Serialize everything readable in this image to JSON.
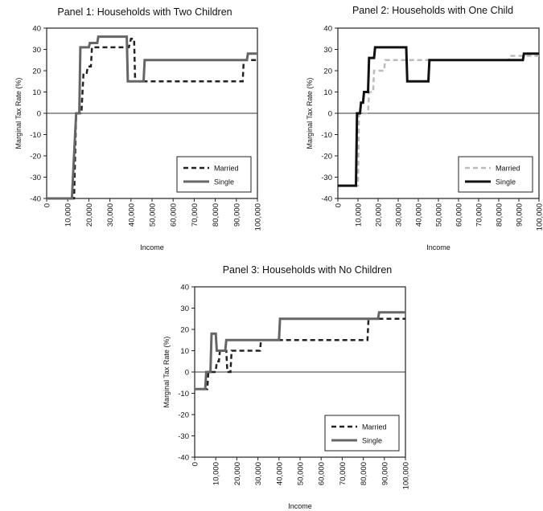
{
  "chart_data": [
    {
      "type": "line",
      "title": "Panel 1: Households with Two Children",
      "xlabel": "Income",
      "ylabel": "Marginal Tax Rate (%)",
      "xlim": [
        0,
        100000
      ],
      "ylim": [
        -40,
        40
      ],
      "x_ticks": [
        "0",
        "10,000",
        "20,000",
        "30,000",
        "40,000",
        "50,000",
        "60,000",
        "70,000",
        "80,000",
        "90,000",
        "100,000"
      ],
      "y_ticks": [
        "40",
        "30",
        "20",
        "10",
        "0",
        "-10",
        "-20",
        "-30",
        "-40"
      ],
      "grid": false,
      "legend": "bottom-right",
      "series": [
        {
          "name": "Married",
          "style": "dashed",
          "color": "#222222",
          "x": [
            0,
            13000,
            14000,
            16500,
            17500,
            19000,
            19500,
            21000,
            21500,
            23500,
            24000,
            39000,
            40000,
            41500,
            42000,
            93000,
            93500,
            100000
          ],
          "y": [
            -40,
            -40,
            0,
            0,
            19,
            19,
            22,
            22,
            31,
            31,
            31,
            31,
            35,
            35,
            15,
            15,
            25,
            25
          ]
        },
        {
          "name": "Single",
          "style": "solid",
          "color": "#666666",
          "x": [
            0,
            12000,
            14000,
            15500,
            16000,
            20000,
            20500,
            24000,
            24500,
            35000,
            35500,
            38000,
            38500,
            46000,
            46500,
            95000,
            95500,
            100000
          ],
          "y": [
            -40,
            -40,
            0,
            0,
            31,
            31,
            33,
            33,
            36,
            36,
            36,
            36,
            15,
            15,
            25,
            25,
            28,
            28
          ]
        }
      ]
    },
    {
      "type": "line",
      "title": "Panel 2: Households with One Child",
      "xlabel": "Income",
      "ylabel": "Marginal Tax Rate (%)",
      "xlim": [
        0,
        100000
      ],
      "ylim": [
        -40,
        40
      ],
      "x_ticks": [
        "0",
        "10,000",
        "20,000",
        "30,000",
        "40,000",
        "50,000",
        "60,000",
        "70,000",
        "80,000",
        "90,000",
        "100,000"
      ],
      "y_ticks": [
        "40",
        "30",
        "20",
        "10",
        "0",
        "-10",
        "-20",
        "-30",
        "-40"
      ],
      "grid": false,
      "legend": "bottom-right",
      "series": [
        {
          "name": "Married",
          "style": "dashed",
          "color": "#bbbbbb",
          "x": [
            0,
            10000,
            10500,
            15000,
            15500,
            17500,
            18000,
            23000,
            23500,
            85000,
            85500,
            100000
          ],
          "y": [
            -34,
            -34,
            0,
            0,
            10,
            10,
            20,
            20,
            25,
            25,
            27,
            27
          ]
        },
        {
          "name": "Single",
          "style": "solid",
          "color": "#111111",
          "x": [
            0,
            9000,
            9500,
            11000,
            11500,
            12500,
            13000,
            15000,
            15500,
            18000,
            18500,
            28000,
            28500,
            34000,
            34500,
            40000,
            40500,
            45000,
            45500,
            92000,
            92500,
            100000
          ],
          "y": [
            -34,
            -34,
            0,
            0,
            5,
            5,
            10,
            10,
            26,
            26,
            31,
            31,
            31,
            31,
            15,
            15,
            15,
            15,
            25,
            25,
            28,
            28
          ]
        }
      ]
    },
    {
      "type": "line",
      "title": "Panel 3: Households with No Children",
      "xlabel": "Income",
      "ylabel": "Marginal Tax Rate (%)",
      "xlim": [
        0,
        100000
      ],
      "ylim": [
        -40,
        40
      ],
      "x_ticks": [
        "0",
        "10,000",
        "20,000",
        "30,000",
        "40,000",
        "50,000",
        "60,000",
        "70,000",
        "80,000",
        "90,000",
        "100,000"
      ],
      "y_ticks": [
        "40",
        "30",
        "20",
        "10",
        "0",
        "-10",
        "-20",
        "-30",
        "-40"
      ],
      "grid": false,
      "legend": "bottom-right",
      "series": [
        {
          "name": "Married",
          "style": "dashed",
          "color": "#222222",
          "x": [
            0,
            6000,
            6500,
            10000,
            10500,
            11500,
            12000,
            15000,
            15500,
            17000,
            17500,
            31000,
            31500,
            41000,
            41500,
            82000,
            82500,
            100000
          ],
          "y": [
            -8,
            -8,
            0,
            0,
            5,
            5,
            10,
            10,
            0,
            0,
            10,
            10,
            15,
            15,
            15,
            15,
            25,
            25
          ]
        },
        {
          "name": "Single",
          "style": "solid",
          "color": "#666666",
          "x": [
            0,
            5000,
            5500,
            7500,
            8000,
            10000,
            10500,
            12500,
            13000,
            14500,
            15000,
            40000,
            40500,
            87000,
            87500,
            100000
          ],
          "y": [
            -8,
            -8,
            0,
            0,
            18,
            18,
            10,
            10,
            10,
            10,
            15,
            15,
            25,
            25,
            28,
            28
          ]
        }
      ]
    }
  ]
}
